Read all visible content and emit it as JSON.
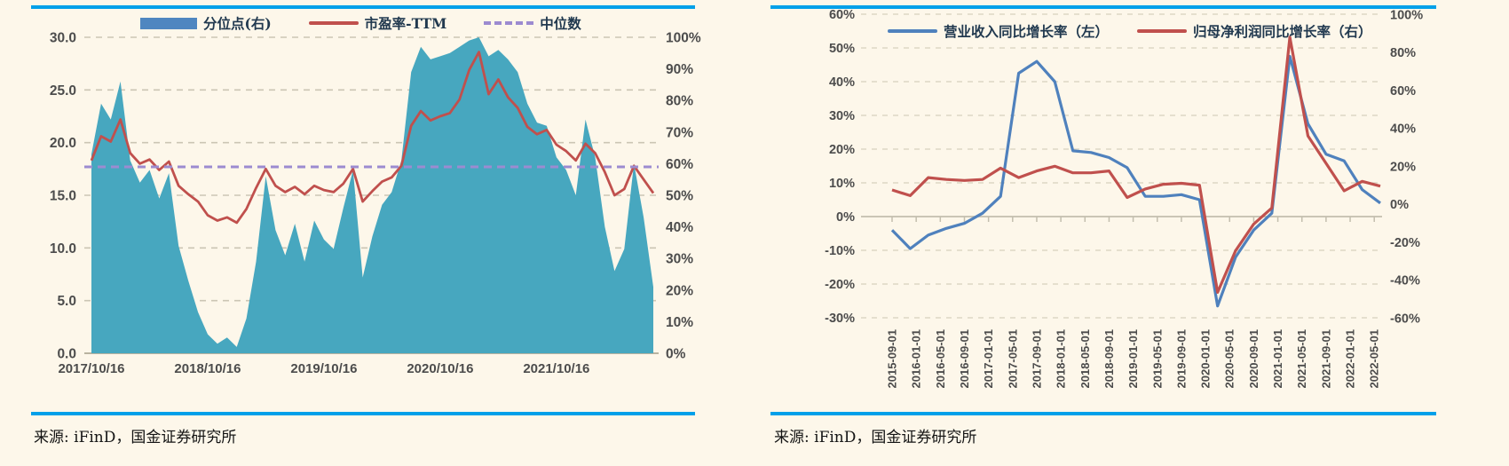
{
  "page": {
    "background": "#fdf7ea",
    "rule_color": "#00a0e9"
  },
  "figures": [
    {
      "source_note": "来源: iFinD，国金证券研究所"
    },
    {
      "source_note": "来源: iFinD，国金证券研究所"
    }
  ],
  "chart_data": [
    {
      "type": "area",
      "title": "",
      "legend": [
        {
          "label": "分位点(右)",
          "swatch": "bar",
          "color": "#4f86c0"
        },
        {
          "label": "市盈率-TTM",
          "swatch": "line",
          "color": "#c0504d"
        },
        {
          "label": "中位数",
          "swatch": "dashed",
          "color": "#9c8bd0"
        }
      ],
      "x_start": "2017/10/16",
      "x_interval": "monthly",
      "x_ticks": {
        "months": [
          0,
          12,
          24,
          36,
          48
        ],
        "labels": [
          "2017/10/16",
          "2018/10/16",
          "2019/10/16",
          "2020/10/16",
          "2021/10/16"
        ]
      },
      "left_axis": {
        "min": 0,
        "max": 30,
        "tick_values": [
          30,
          25,
          20,
          15,
          10,
          5,
          0
        ],
        "tick_labels": [
          "30.0",
          "25.0",
          "20.0",
          "15.0",
          "10.0",
          "5.0",
          "0.0"
        ]
      },
      "right_axis": {
        "min": 0,
        "max": 100,
        "tick_values": [
          100,
          90,
          80,
          70,
          60,
          50,
          40,
          30,
          20,
          10,
          0
        ],
        "tick_labels": [
          "100%",
          "90%",
          "80%",
          "70%",
          "60%",
          "50%",
          "40%",
          "30%",
          "20%",
          "10%",
          "0%"
        ]
      },
      "median_value": 17.7,
      "grid": "horizontal-dashed",
      "series": [
        {
          "name": "分位点(右)",
          "axis": "right",
          "type": "area",
          "color": "#47a7bf",
          "values": [
            63,
            79,
            74,
            86,
            61,
            54,
            58,
            49,
            57,
            34,
            23,
            13,
            6,
            3,
            5,
            2,
            11,
            29,
            56,
            39,
            31,
            41,
            29,
            42,
            36,
            33,
            46,
            58,
            24,
            37,
            47,
            51,
            61,
            89,
            97,
            93,
            94,
            95,
            97,
            99,
            100,
            94,
            96,
            93,
            89,
            79,
            73,
            72,
            62,
            58,
            50,
            74,
            62,
            40,
            26,
            33,
            60,
            43,
            21
          ]
        },
        {
          "name": "市盈率-TTM",
          "axis": "left",
          "type": "line",
          "color": "#c0504d",
          "values": [
            18.3,
            20.6,
            20.1,
            22.2,
            19.0,
            18.0,
            18.4,
            17.4,
            18.2,
            15.9,
            15.1,
            14.4,
            13.1,
            12.6,
            12.9,
            12.4,
            13.7,
            15.7,
            17.5,
            15.9,
            15.3,
            15.8,
            15.1,
            15.9,
            15.5,
            15.3,
            16.1,
            17.5,
            14.4,
            15.4,
            16.3,
            16.7,
            17.8,
            21.6,
            23.0,
            22.1,
            22.5,
            22.8,
            24.1,
            26.9,
            28.6,
            24.6,
            26.0,
            24.3,
            23.3,
            21.5,
            20.8,
            21.2,
            19.8,
            19.2,
            18.3,
            19.9,
            19.0,
            17.2,
            15.0,
            15.6,
            17.8,
            16.5,
            15.2
          ]
        },
        {
          "name": "中位数",
          "axis": "left",
          "type": "dashed-constant",
          "color": "#9c8bd0",
          "value": 17.7
        }
      ]
    },
    {
      "type": "line",
      "title": "",
      "legend": [
        {
          "label": "营业收入同比增长率（左）",
          "swatch": "line",
          "color": "#4f81bd"
        },
        {
          "label": "归母净利润同比增长率（右）",
          "swatch": "line",
          "color": "#c0504d"
        }
      ],
      "x_ticks": {
        "label_interval_months": 4,
        "labels": [
          "2015-09-01",
          "2016-01-01",
          "2016-05-01",
          "2016-09-01",
          "2017-01-01",
          "2017-05-01",
          "2017-09-01",
          "2018-01-01",
          "2018-05-01",
          "2018-09-01",
          "2019-01-01",
          "2019-05-01",
          "2019-09-01",
          "2020-01-01",
          "2020-05-01",
          "2020-09-01",
          "2021-01-01",
          "2021-05-01",
          "2021-09-01",
          "2022-01-01",
          "2022-05-01"
        ]
      },
      "x_point_dates": [
        "2015-09",
        "2015-12",
        "2016-03",
        "2016-06",
        "2016-09",
        "2016-12",
        "2017-03",
        "2017-06",
        "2017-09",
        "2017-12",
        "2018-03",
        "2018-06",
        "2018-09",
        "2018-12",
        "2019-03",
        "2019-06",
        "2019-09",
        "2019-12",
        "2020-03",
        "2020-06",
        "2020-09",
        "2020-12",
        "2021-03",
        "2021-06",
        "2021-09",
        "2021-12",
        "2022-03",
        "2022-06"
      ],
      "left_axis": {
        "min": -30,
        "max": 60,
        "tick_values": [
          60,
          50,
          40,
          30,
          20,
          10,
          0,
          -10,
          -20,
          -30
        ],
        "tick_labels": [
          "60%",
          "50%",
          "40%",
          "30%",
          "20%",
          "10%",
          "0%",
          "-10%",
          "-20%",
          "-30%"
        ]
      },
      "right_axis": {
        "min": -60,
        "max": 100,
        "tick_values": [
          100,
          80,
          60,
          40,
          20,
          0,
          -20,
          -40,
          -60
        ],
        "tick_labels": [
          "100%",
          "80%",
          "60%",
          "40%",
          "20%",
          "0%",
          "-20%",
          "-40%",
          "-60%"
        ]
      },
      "grid": "horizontal-dashed",
      "series": [
        {
          "name": "营业收入同比增长率（左）",
          "axis": "left",
          "color": "#4f81bd",
          "values": [
            -4,
            -9.5,
            -5.5,
            -3.5,
            -2,
            1,
            6,
            42.5,
            46,
            40,
            19.5,
            19,
            17.5,
            14.5,
            6,
            6,
            6.5,
            5,
            -26.5,
            -12,
            -4,
            1,
            47.5,
            27.5,
            18.5,
            16.5,
            8,
            4
          ]
        },
        {
          "name": "归母净利润同比增长率（右）",
          "axis": "right",
          "color": "#c0504d",
          "values": [
            7.5,
            4.5,
            14,
            13,
            12.5,
            13,
            19,
            14,
            17.5,
            20,
            16.5,
            16.5,
            17.5,
            3.5,
            8,
            10.5,
            11,
            10,
            -46.5,
            -24.5,
            -10.5,
            -2,
            88,
            36,
            21.5,
            7,
            12,
            9.5
          ]
        }
      ]
    }
  ]
}
